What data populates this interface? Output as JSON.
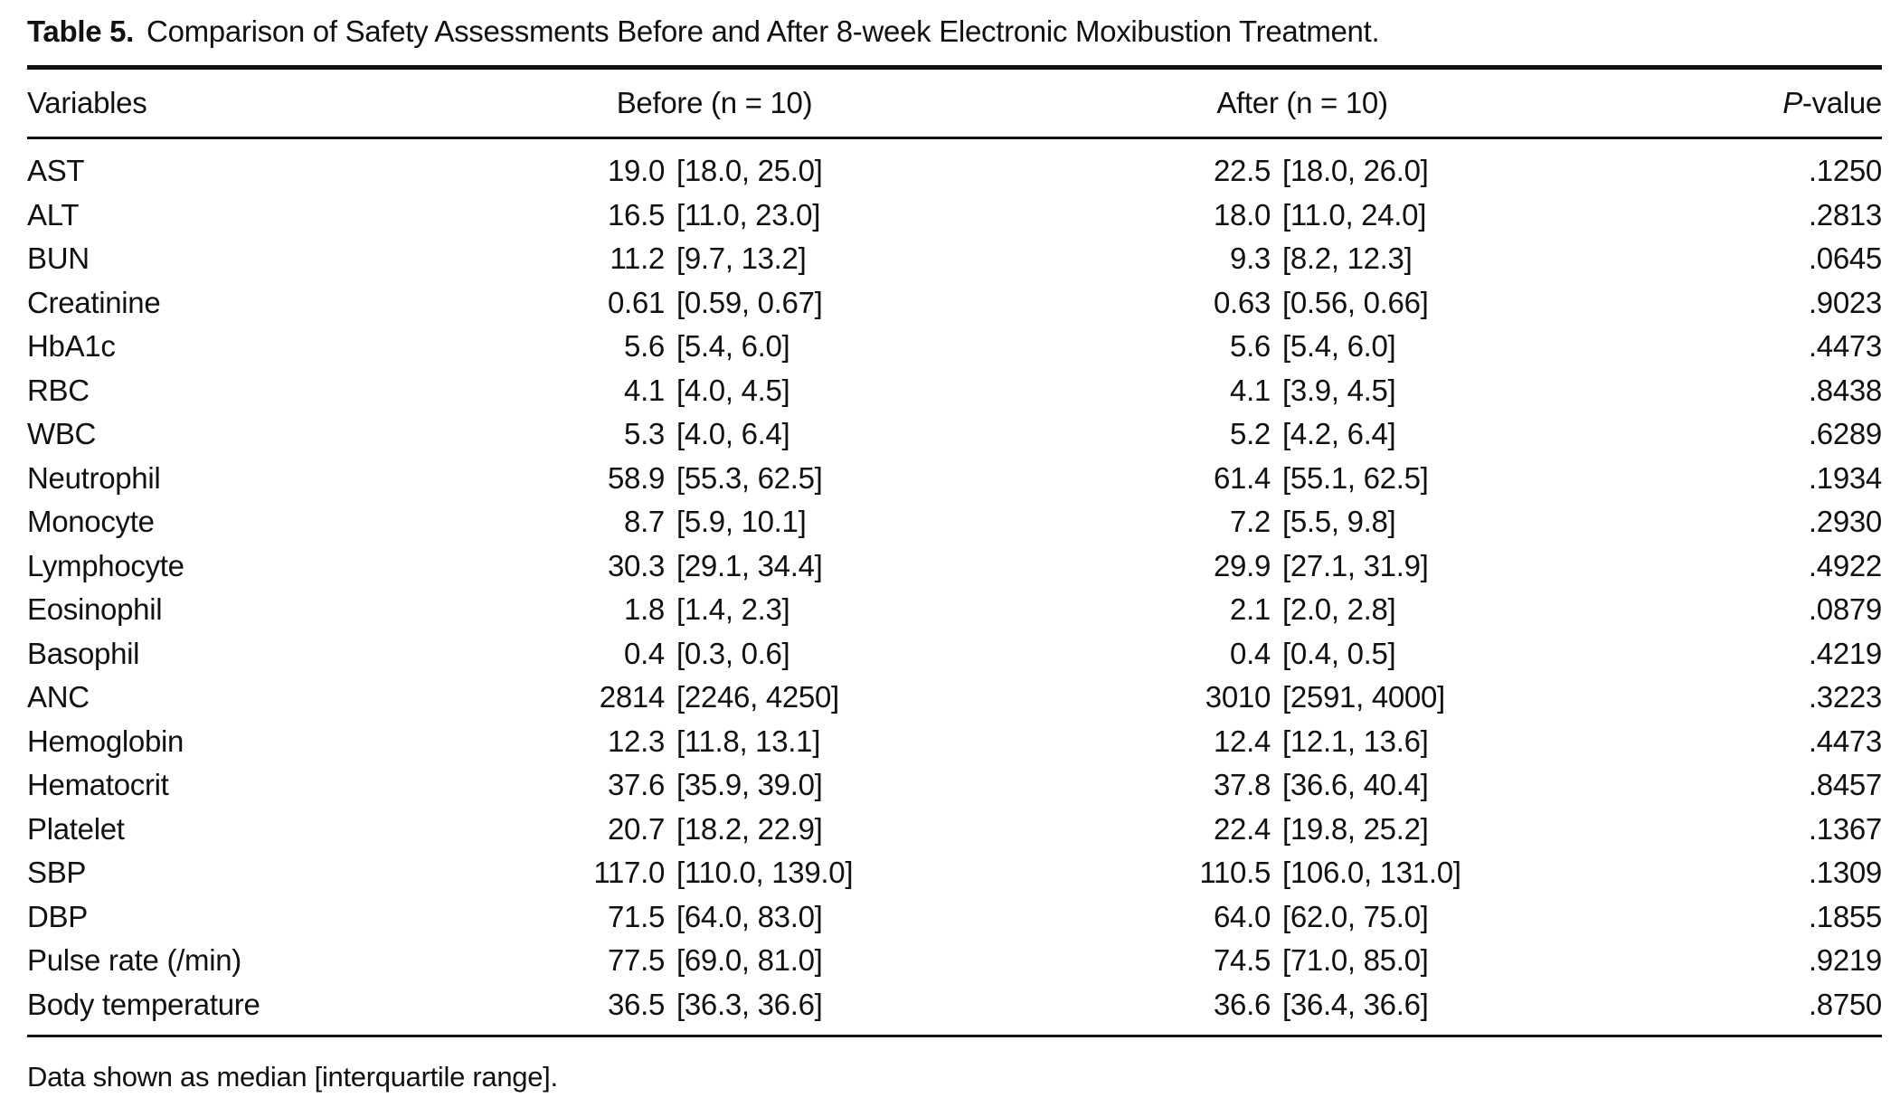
{
  "title": {
    "label": "Table 5.",
    "text": "Comparison of Safety Assessments Before and After 8-week Electronic Moxibustion Treatment."
  },
  "table": {
    "columns": {
      "variables": "Variables",
      "before": "Before (n = 10)",
      "after": "After (n = 10)",
      "p_italic": "P",
      "p_rest": "-value"
    },
    "rows": [
      {
        "variable": "AST",
        "before_med": "19.0",
        "before_iqr": "[18.0, 25.0]",
        "after_med": "22.5",
        "after_iqr": "[18.0, 26.0]",
        "p": ".1250"
      },
      {
        "variable": "ALT",
        "before_med": "16.5",
        "before_iqr": "[11.0, 23.0]",
        "after_med": "18.0",
        "after_iqr": "[11.0, 24.0]",
        "p": ".2813"
      },
      {
        "variable": "BUN",
        "before_med": "11.2",
        "before_iqr": "[9.7, 13.2]",
        "after_med": "9.3",
        "after_iqr": "[8.2, 12.3]",
        "p": ".0645"
      },
      {
        "variable": "Creatinine",
        "before_med": "0.61",
        "before_iqr": "[0.59, 0.67]",
        "after_med": "0.63",
        "after_iqr": "[0.56, 0.66]",
        "p": ".9023"
      },
      {
        "variable": "HbA1c",
        "before_med": "5.6",
        "before_iqr": "[5.4, 6.0]",
        "after_med": "5.6",
        "after_iqr": "[5.4, 6.0]",
        "p": ".4473"
      },
      {
        "variable": "RBC",
        "before_med": "4.1",
        "before_iqr": "[4.0, 4.5]",
        "after_med": "4.1",
        "after_iqr": "[3.9, 4.5]",
        "p": ".8438"
      },
      {
        "variable": "WBC",
        "before_med": "5.3",
        "before_iqr": "[4.0, 6.4]",
        "after_med": "5.2",
        "after_iqr": "[4.2, 6.4]",
        "p": ".6289"
      },
      {
        "variable": "Neutrophil",
        "before_med": "58.9",
        "before_iqr": "[55.3, 62.5]",
        "after_med": "61.4",
        "after_iqr": "[55.1, 62.5]",
        "p": ".1934"
      },
      {
        "variable": "Monocyte",
        "before_med": "8.7",
        "before_iqr": "[5.9, 10.1]",
        "after_med": "7.2",
        "after_iqr": "[5.5, 9.8]",
        "p": ".2930"
      },
      {
        "variable": "Lymphocyte",
        "before_med": "30.3",
        "before_iqr": "[29.1, 34.4]",
        "after_med": "29.9",
        "after_iqr": "[27.1, 31.9]",
        "p": ".4922"
      },
      {
        "variable": "Eosinophil",
        "before_med": "1.8",
        "before_iqr": "[1.4, 2.3]",
        "after_med": "2.1",
        "after_iqr": "[2.0, 2.8]",
        "p": ".0879"
      },
      {
        "variable": "Basophil",
        "before_med": "0.4",
        "before_iqr": "[0.3, 0.6]",
        "after_med": "0.4",
        "after_iqr": "[0.4, 0.5]",
        "p": ".4219"
      },
      {
        "variable": "ANC",
        "before_med": "2814",
        "before_iqr": "[2246, 4250]",
        "after_med": "3010",
        "after_iqr": "[2591, 4000]",
        "p": ".3223"
      },
      {
        "variable": "Hemoglobin",
        "before_med": "12.3",
        "before_iqr": "[11.8, 13.1]",
        "after_med": "12.4",
        "after_iqr": "[12.1, 13.6]",
        "p": ".4473"
      },
      {
        "variable": "Hematocrit",
        "before_med": "37.6",
        "before_iqr": "[35.9, 39.0]",
        "after_med": "37.8",
        "after_iqr": "[36.6, 40.4]",
        "p": ".8457"
      },
      {
        "variable": "Platelet",
        "before_med": "20.7",
        "before_iqr": "[18.2, 22.9]",
        "after_med": "22.4",
        "after_iqr": "[19.8, 25.2]",
        "p": ".1367"
      },
      {
        "variable": "SBP",
        "before_med": "117.0",
        "before_iqr": "[110.0, 139.0]",
        "after_med": "110.5",
        "after_iqr": "[106.0, 131.0]",
        "p": ".1309"
      },
      {
        "variable": "DBP",
        "before_med": "71.5",
        "before_iqr": "[64.0, 83.0]",
        "after_med": "64.0",
        "after_iqr": "[62.0, 75.0]",
        "p": ".1855"
      },
      {
        "variable": "Pulse rate (/min)",
        "before_med": "77.5",
        "before_iqr": "[69.0, 81.0]",
        "after_med": "74.5",
        "after_iqr": "[71.0, 85.0]",
        "p": ".9219"
      },
      {
        "variable": "Body temperature",
        "before_med": "36.5",
        "before_iqr": "[36.3, 36.6]",
        "after_med": "36.6",
        "after_iqr": "[36.4, 36.6]",
        "p": ".8750"
      }
    ]
  },
  "footnote": "Data shown as median [interquartile range]."
}
